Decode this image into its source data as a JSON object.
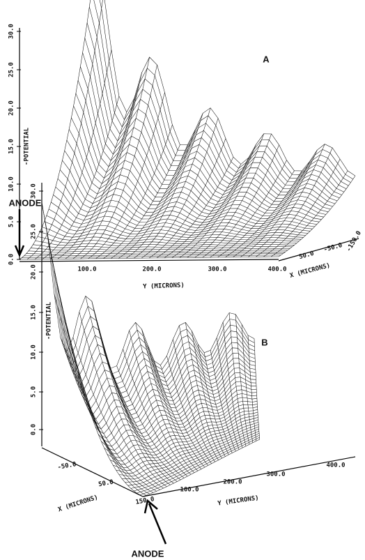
{
  "panels": [
    {
      "label": "A",
      "z_axis_label": "-POTENTIAL",
      "z_ticks": [
        "0.0",
        "5.0",
        "10.0",
        "15.0",
        "20.0",
        "25.0",
        "30.0"
      ],
      "y_axis_label": "Y (MICRONS)",
      "y_ticks": [
        "100.0",
        "200.0",
        "300.0",
        "400.0"
      ],
      "x_axis_label": "X (MICRONS)",
      "x_ticks": [
        "50.0",
        "-50.0",
        "-150.0"
      ],
      "annotation": "ANODE"
    },
    {
      "label": "B",
      "z_axis_label": "-POTENTIAL",
      "z_ticks": [
        "0.0",
        "5.0",
        "10.0",
        "15.0",
        "20.0",
        "25.0",
        "30.0"
      ],
      "y_axis_label": "Y (MICRONS)",
      "y_ticks": [
        "100.0",
        "200.0",
        "300.0",
        "400.0"
      ],
      "x_axis_label": "X (MICRONS)",
      "x_ticks": [
        "-50.0",
        "50.0",
        "150.0"
      ],
      "annotation": "ANODE"
    }
  ]
}
